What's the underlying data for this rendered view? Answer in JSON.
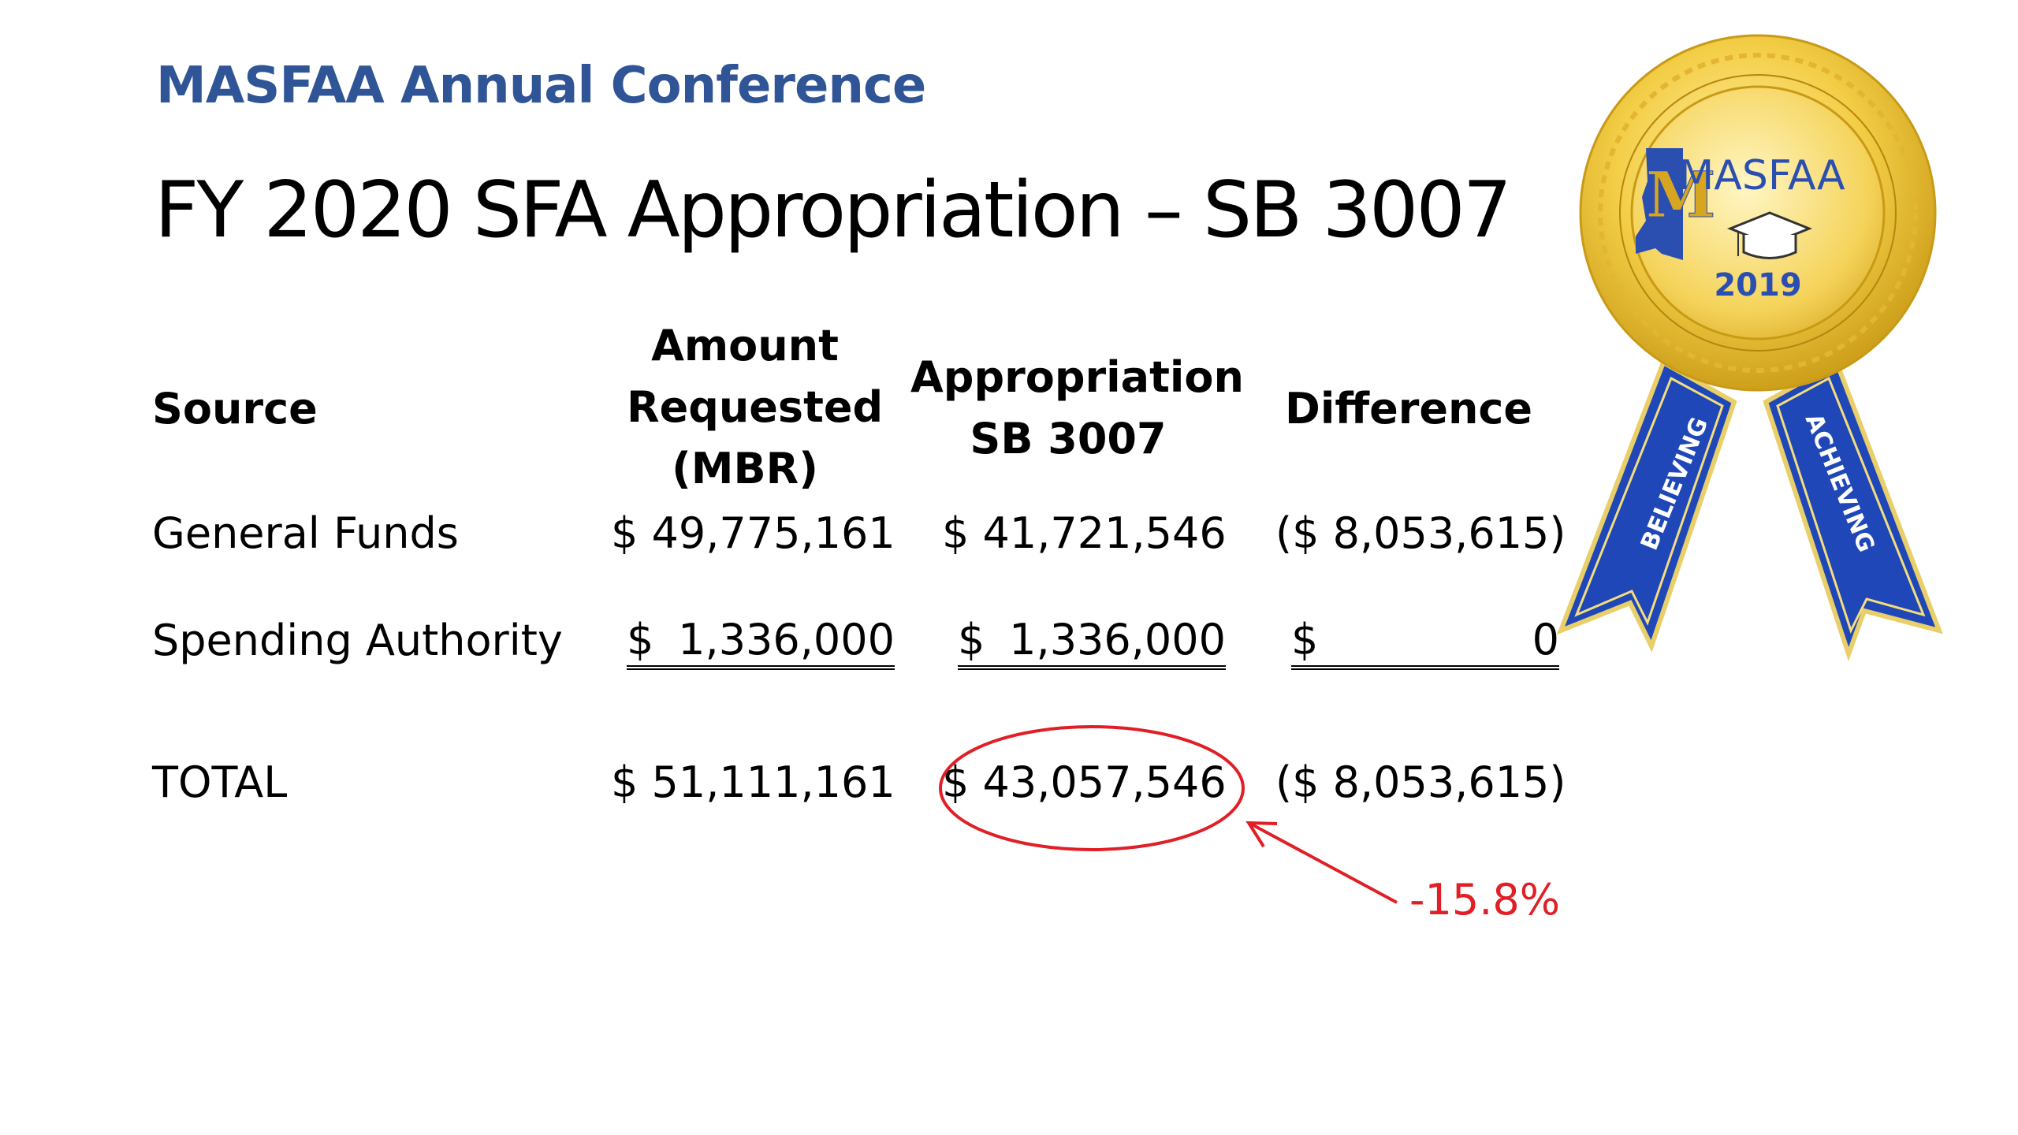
{
  "header": {
    "conference": "MASFAA Annual Conference",
    "title": "FY 2020 SFA Appropriation – SB 3007"
  },
  "table": {
    "columns": {
      "source": "Source",
      "requested": [
        "Amount",
        "Requested",
        "(MBR)"
      ],
      "appropriation": [
        "Appropriation",
        "SB 3007"
      ],
      "difference": "Difference"
    },
    "rows": [
      {
        "source": "General Funds",
        "requested": "$ 49,775,161",
        "appropriation": "$ 41,721,546",
        "difference": "($ 8,053,615)"
      },
      {
        "source": "Spending Authority",
        "requested_sign": "$",
        "requested": "1,336,000",
        "appropriation_sign": "$",
        "appropriation": "1,336,000",
        "difference_sign": "$",
        "difference": "0"
      },
      {
        "source": "TOTAL",
        "requested": "$ 51,111,161",
        "appropriation": "$ 43,057,546",
        "difference": "($ 8,053,615)"
      }
    ]
  },
  "annotation": {
    "percent_change": "-15.8%",
    "color": "#e01f26"
  },
  "badge": {
    "brand": "MASFAA",
    "year": "2019",
    "ribbon_left": "BELIEVING",
    "ribbon_right": "ACHIEVING",
    "colors": {
      "gold": "#f3cd45",
      "gold_dark": "#c99a16",
      "ribbon_blue": "#1f47b8",
      "text_blue": "#2a4fb0"
    }
  },
  "colors": {
    "conference_blue": "#2f5597"
  }
}
